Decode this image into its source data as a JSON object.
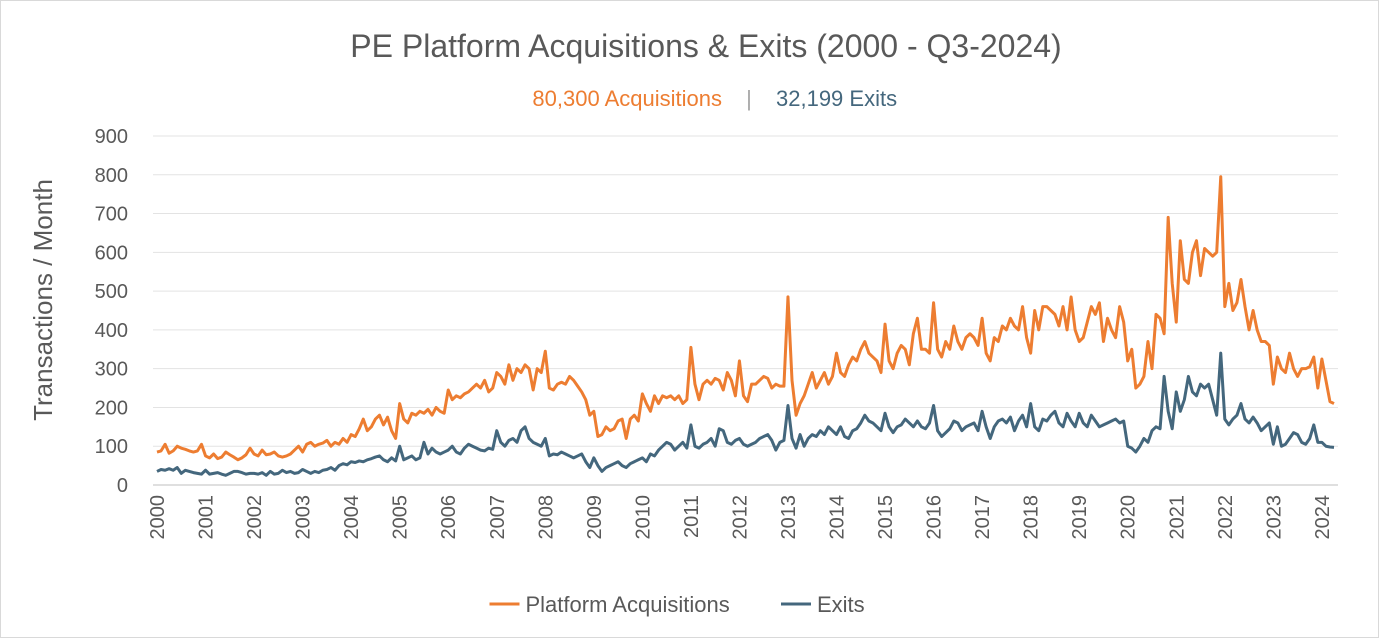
{
  "chart_data": {
    "type": "line",
    "title": "PE Platform Acquisitions & Exits (2000 - Q3-2024)",
    "subtitle": {
      "left": "80,300 Acquisitions",
      "separator": "|",
      "right": "32,199 Exits"
    },
    "y_label": "Transactions / Month",
    "categories": [
      "2000",
      null,
      null,
      null,
      null,
      null,
      null,
      null,
      null,
      null,
      null,
      null,
      "2001",
      null,
      null,
      null,
      null,
      null,
      null,
      null,
      null,
      null,
      null,
      null,
      "2002",
      null,
      null,
      null,
      null,
      null,
      null,
      null,
      null,
      null,
      null,
      null,
      "2003",
      null,
      null,
      null,
      null,
      null,
      null,
      null,
      null,
      null,
      null,
      null,
      "2004",
      null,
      null,
      null,
      null,
      null,
      null,
      null,
      null,
      null,
      null,
      null,
      "2005",
      null,
      null,
      null,
      null,
      null,
      null,
      null,
      null,
      null,
      null,
      null,
      "2006",
      null,
      null,
      null,
      null,
      null,
      null,
      null,
      null,
      null,
      null,
      null,
      "2007",
      null,
      null,
      null,
      null,
      null,
      null,
      null,
      null,
      null,
      null,
      null,
      "2008",
      null,
      null,
      null,
      null,
      null,
      null,
      null,
      null,
      null,
      null,
      null,
      "2009",
      null,
      null,
      null,
      null,
      null,
      null,
      null,
      null,
      null,
      null,
      null,
      "2010",
      null,
      null,
      null,
      null,
      null,
      null,
      null,
      null,
      null,
      null,
      null,
      "2011",
      null,
      null,
      null,
      null,
      null,
      null,
      null,
      null,
      null,
      null,
      null,
      "2012",
      null,
      null,
      null,
      null,
      null,
      null,
      null,
      null,
      null,
      null,
      null,
      "2013",
      null,
      null,
      null,
      null,
      null,
      null,
      null,
      null,
      null,
      null,
      null,
      "2014",
      null,
      null,
      null,
      null,
      null,
      null,
      null,
      null,
      null,
      null,
      null,
      "2015",
      null,
      null,
      null,
      null,
      null,
      null,
      null,
      null,
      null,
      null,
      null,
      "2016",
      null,
      null,
      null,
      null,
      null,
      null,
      null,
      null,
      null,
      null,
      null,
      "2017",
      null,
      null,
      null,
      null,
      null,
      null,
      null,
      null,
      null,
      null,
      null,
      "2018",
      null,
      null,
      null,
      null,
      null,
      null,
      null,
      null,
      null,
      null,
      null,
      "2019",
      null,
      null,
      null,
      null,
      null,
      null,
      null,
      null,
      null,
      null,
      null,
      "2020",
      null,
      null,
      null,
      null,
      null,
      null,
      null,
      null,
      null,
      null,
      null,
      "2021",
      null,
      null,
      null,
      null,
      null,
      null,
      null,
      null,
      null,
      null,
      null,
      "2022",
      null,
      null,
      null,
      null,
      null,
      null,
      null,
      null,
      null,
      null,
      null,
      "2023",
      null,
      null,
      null,
      null,
      null,
      null,
      null,
      null,
      null,
      null,
      null,
      "2024",
      null,
      null,
      null
    ],
    "series": [
      {
        "name": "Platform Acquisitions",
        "color": "#ed7d31",
        "values": [
          85,
          88,
          105,
          82,
          88,
          100,
          95,
          92,
          88,
          85,
          88,
          105,
          75,
          70,
          80,
          68,
          72,
          85,
          78,
          72,
          65,
          70,
          78,
          95,
          80,
          75,
          90,
          78,
          80,
          85,
          75,
          72,
          75,
          80,
          90,
          100,
          85,
          105,
          110,
          100,
          105,
          108,
          115,
          100,
          110,
          105,
          120,
          110,
          130,
          125,
          145,
          170,
          140,
          150,
          170,
          180,
          155,
          175,
          140,
          120,
          210,
          170,
          160,
          185,
          180,
          190,
          185,
          195,
          180,
          200,
          190,
          185,
          245,
          220,
          230,
          225,
          235,
          240,
          250,
          260,
          250,
          270,
          240,
          250,
          290,
          280,
          260,
          310,
          270,
          300,
          290,
          310,
          300,
          245,
          300,
          290,
          345,
          250,
          245,
          260,
          265,
          260,
          280,
          270,
          255,
          240,
          220,
          180,
          190,
          125,
          130,
          150,
          140,
          145,
          165,
          170,
          120,
          170,
          180,
          165,
          235,
          210,
          190,
          230,
          210,
          230,
          225,
          230,
          220,
          230,
          210,
          220,
          355,
          260,
          220,
          260,
          270,
          260,
          275,
          270,
          245,
          290,
          270,
          230,
          320,
          230,
          215,
          260,
          260,
          270,
          280,
          275,
          250,
          260,
          255,
          255,
          485,
          270,
          180,
          210,
          230,
          260,
          290,
          250,
          270,
          290,
          260,
          280,
          340,
          290,
          280,
          310,
          330,
          320,
          350,
          370,
          340,
          330,
          320,
          290,
          415,
          320,
          300,
          340,
          360,
          350,
          310,
          390,
          430,
          350,
          350,
          340,
          470,
          350,
          330,
          370,
          350,
          410,
          370,
          350,
          380,
          390,
          380,
          360,
          430,
          340,
          320,
          380,
          370,
          410,
          400,
          430,
          410,
          400,
          460,
          380,
          340,
          450,
          400,
          460,
          460,
          450,
          440,
          410,
          460,
          400,
          485,
          400,
          370,
          380,
          420,
          460,
          440,
          470,
          370,
          430,
          400,
          380,
          460,
          420,
          320,
          350,
          250,
          260,
          280,
          370,
          300,
          440,
          430,
          390,
          690,
          520,
          420,
          630,
          530,
          520,
          600,
          630,
          540,
          610,
          600,
          590,
          600,
          795,
          460,
          520,
          450,
          470,
          530,
          460,
          400,
          450,
          400,
          370,
          370,
          360,
          260,
          330,
          300,
          290,
          340,
          300,
          280,
          300,
          300,
          305,
          330,
          250,
          325,
          270,
          215,
          210
        ]
      },
      {
        "name": "Exits",
        "color": "#44677d",
        "values": [
          35,
          40,
          38,
          42,
          38,
          45,
          30,
          38,
          35,
          32,
          30,
          28,
          38,
          28,
          30,
          32,
          28,
          25,
          30,
          35,
          35,
          32,
          28,
          30,
          30,
          28,
          32,
          25,
          35,
          28,
          30,
          38,
          32,
          35,
          30,
          32,
          40,
          35,
          30,
          35,
          32,
          38,
          40,
          45,
          38,
          50,
          55,
          52,
          60,
          58,
          62,
          60,
          65,
          68,
          72,
          75,
          65,
          60,
          70,
          62,
          100,
          65,
          70,
          75,
          65,
          70,
          110,
          80,
          95,
          85,
          80,
          85,
          90,
          100,
          85,
          80,
          95,
          105,
          100,
          95,
          90,
          88,
          95,
          92,
          140,
          110,
          100,
          115,
          120,
          110,
          140,
          150,
          120,
          110,
          105,
          100,
          120,
          75,
          80,
          78,
          85,
          80,
          75,
          70,
          75,
          80,
          60,
          45,
          70,
          50,
          35,
          45,
          50,
          55,
          60,
          50,
          45,
          55,
          60,
          65,
          70,
          60,
          80,
          75,
          90,
          100,
          110,
          105,
          90,
          100,
          110,
          95,
          155,
          100,
          95,
          105,
          110,
          120,
          100,
          145,
          140,
          110,
          105,
          115,
          120,
          105,
          100,
          105,
          110,
          120,
          125,
          130,
          115,
          90,
          110,
          115,
          205,
          120,
          95,
          130,
          100,
          120,
          130,
          125,
          140,
          130,
          150,
          140,
          130,
          150,
          125,
          120,
          140,
          145,
          160,
          180,
          165,
          160,
          150,
          140,
          185,
          150,
          135,
          150,
          155,
          170,
          160,
          150,
          165,
          150,
          145,
          160,
          205,
          140,
          125,
          135,
          145,
          165,
          160,
          140,
          150,
          155,
          160,
          140,
          190,
          150,
          120,
          150,
          165,
          170,
          160,
          175,
          140,
          165,
          180,
          150,
          210,
          150,
          140,
          170,
          165,
          180,
          190,
          160,
          150,
          185,
          165,
          150,
          185,
          160,
          150,
          180,
          165,
          150,
          155,
          160,
          165,
          170,
          160,
          165,
          100,
          95,
          85,
          100,
          120,
          110,
          140,
          150,
          145,
          280,
          190,
          145,
          240,
          190,
          220,
          280,
          240,
          230,
          260,
          250,
          260,
          220,
          180,
          340,
          170,
          155,
          170,
          180,
          210,
          170,
          160,
          175,
          160,
          140,
          150,
          160,
          105,
          150,
          100,
          105,
          120,
          135,
          130,
          110,
          105,
          120,
          155,
          110,
          110,
          100,
          98,
          97
        ]
      }
    ],
    "ylim": [
      0,
      900
    ],
    "yticks": [
      0,
      100,
      200,
      300,
      400,
      500,
      600,
      700,
      800,
      900
    ],
    "grid": true,
    "legend": "bottom"
  }
}
